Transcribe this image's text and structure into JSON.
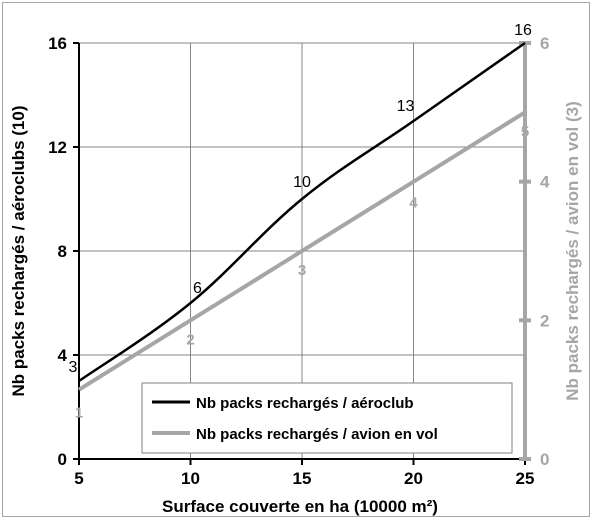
{
  "chart_data": {
    "type": "line",
    "title": "",
    "xlabel": "Surface couverte en ha (10000 m²)",
    "ylabel_left": "Nb packs rechargés / aéroclubs (10)",
    "ylabel_right": "Nb packs rechargés / avion en vol (3)",
    "xlim": [
      5,
      25
    ],
    "ylim_left": [
      0,
      16
    ],
    "ylim_right": [
      0,
      6
    ],
    "x_ticks": [
      "5",
      "10",
      "15",
      "20",
      "25"
    ],
    "y_left_ticks": [
      "0",
      "4",
      "8",
      "12",
      "16"
    ],
    "y_right_ticks": [
      "0",
      "2",
      "4",
      "6"
    ],
    "grid": true,
    "legend_position": "bottom-center",
    "series": [
      {
        "name": "Nb packs rechargés / aéroclub",
        "axis": "left",
        "color": "#000000",
        "x": [
          5,
          10,
          15,
          20,
          25
        ],
        "values": [
          3,
          6,
          10,
          13,
          16
        ],
        "labels": [
          "3",
          "6",
          "10",
          "13",
          "16"
        ]
      },
      {
        "name": "Nb packs rechargés / avion en vol",
        "axis": "right",
        "color": "#a6a6a6",
        "x": [
          5,
          10,
          15,
          20,
          25
        ],
        "values": [
          1,
          2,
          3,
          4,
          5
        ],
        "labels": [
          "1",
          "2",
          "3",
          "4",
          "5"
        ]
      }
    ]
  }
}
